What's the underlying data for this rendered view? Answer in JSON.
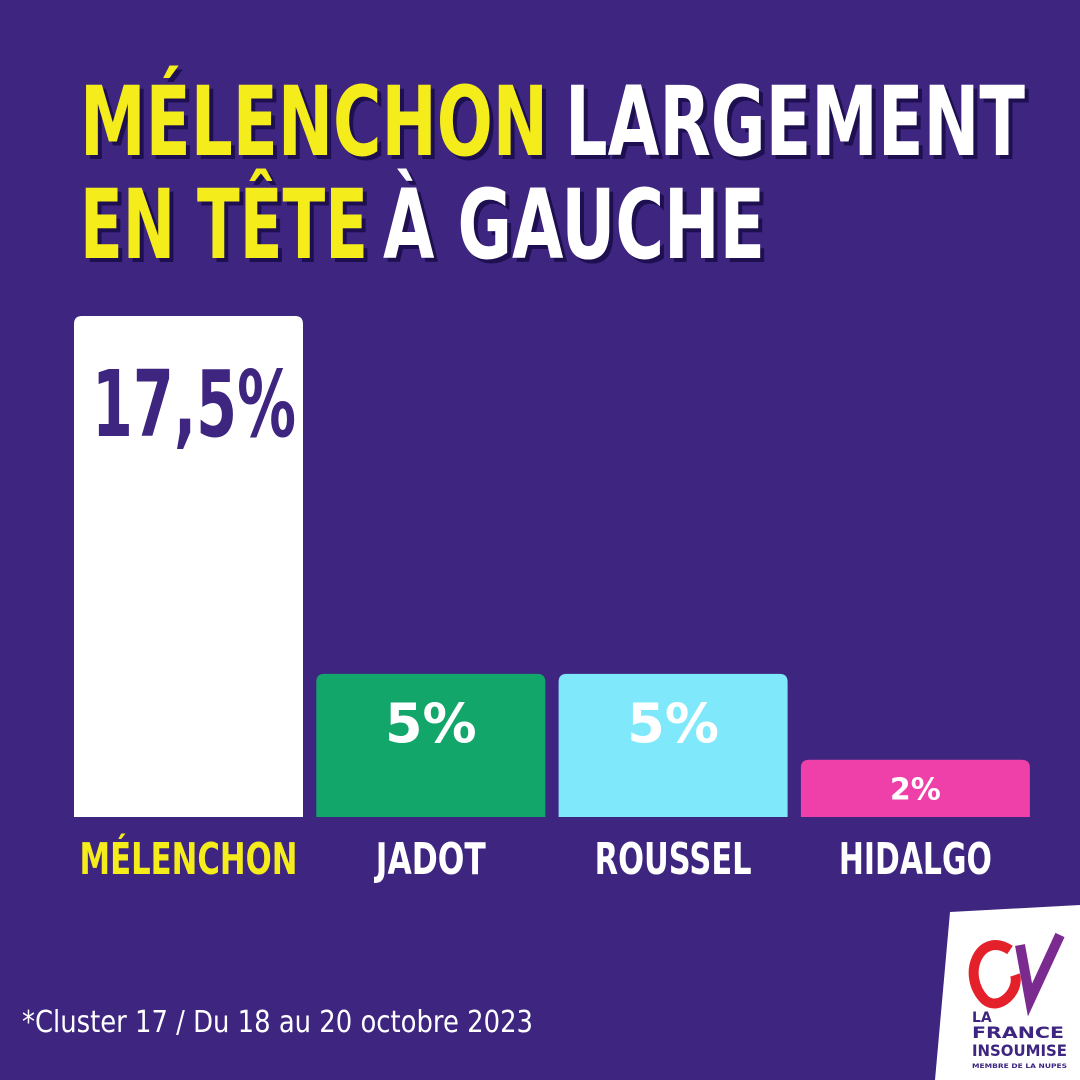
{
  "chart_data": {
    "type": "bar",
    "title": [
      {
        "text": "MÉLENCHON",
        "color": "#f5ec1b"
      },
      {
        "text": "LARGEMENT",
        "color": "#ffffff"
      },
      {
        "text": "EN TÊTE",
        "color": "#f5ec1b"
      },
      {
        "text": "À GAUCHE",
        "color": "#ffffff"
      }
    ],
    "categories": [
      "MÉLENCHON",
      "JADOT",
      "ROUSSEL",
      "HIDALGO"
    ],
    "category_colors": [
      "#f5ec1b",
      "#ffffff",
      "#ffffff",
      "#ffffff"
    ],
    "values": [
      17.5,
      5,
      5,
      2
    ],
    "value_labels": [
      "17,5%",
      "5%",
      "5%",
      "2%"
    ],
    "colors": [
      "#ffffff",
      "#12a66b",
      "#7fe9fb",
      "#ee40a8"
    ],
    "value_label_colors": [
      "#3d2580",
      "#ffffff",
      "#ffffff",
      "#ffffff"
    ],
    "footnote": "*Cluster 17 / Du 18 au 20 octobre 2023",
    "logo": {
      "line1": "LA",
      "line2": "FRANCE",
      "line3": "INSOUMISE",
      "tagline": "MEMBRE DE LA NUPES"
    }
  }
}
